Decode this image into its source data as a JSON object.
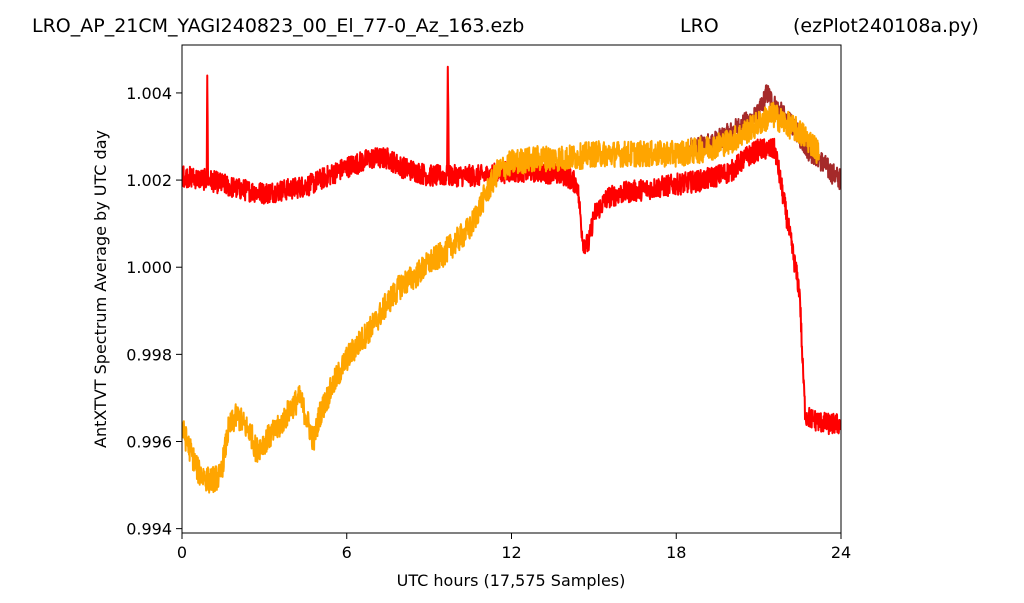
{
  "title_left": "LRO_AP_21CM_YAGI240823_00_El_77-0_Az_163.ezb",
  "title_center": "LRO",
  "title_right": "(ezPlot240108a.py)",
  "chart_data": {
    "type": "line",
    "xlabel": "UTC hours  (17,575 Samples)",
    "ylabel": "AntXTVT Spectrum Average by UTC day",
    "xlim": [
      0,
      24
    ],
    "ylim": [
      0.9939,
      1.0051
    ],
    "xticks": [
      0,
      6,
      12,
      18,
      24
    ],
    "xtick_labels": [
      "0",
      "6",
      "12",
      "18",
      "24"
    ],
    "yticks": [
      0.994,
      0.996,
      0.998,
      1.0,
      1.002,
      1.004
    ],
    "ytick_labels": [
      "0.994",
      "0.996",
      "0.998",
      "1.000",
      "1.002",
      "1.004"
    ],
    "grid": false,
    "legend": false,
    "series": [
      {
        "color": "#a52a2a",
        "x": [
          18.5,
          19.0,
          19.5,
          20.0,
          20.5,
          21.0,
          21.3,
          21.6,
          22.0,
          22.4,
          22.8,
          23.2,
          23.6,
          24.0
        ],
        "y": [
          1.0027,
          1.0028,
          1.0029,
          1.0031,
          1.0033,
          1.0035,
          1.004,
          1.0037,
          1.0034,
          1.0031,
          1.0027,
          1.0025,
          1.0022,
          1.002
        ],
        "noise": 0.0005
      },
      {
        "color": "#ff0000",
        "x": [
          0.0,
          0.9,
          0.92,
          0.95,
          1.0,
          2.0,
          3.0,
          4.0,
          4.7,
          5.0,
          6.0,
          6.9,
          7.5,
          8.0,
          9.0,
          9.65,
          9.68,
          9.72,
          9.8,
          10.5,
          11.0,
          12.0,
          13.0,
          14.0,
          14.4,
          14.6,
          14.8,
          15.0,
          15.5,
          16.0,
          17.0,
          18.0,
          19.0,
          20.0,
          20.5,
          21.0,
          21.4,
          21.6,
          22.5,
          22.6,
          22.7,
          23.0,
          23.5,
          24.0
        ],
        "y": [
          1.0021,
          1.002,
          1.0044,
          1.002,
          1.002,
          1.0018,
          1.0017,
          1.0018,
          1.0019,
          1.002,
          1.0023,
          1.0025,
          1.0025,
          1.0023,
          1.0021,
          1.0021,
          1.0046,
          1.0021,
          1.0021,
          1.0021,
          1.0021,
          1.0022,
          1.0022,
          1.0021,
          1.0019,
          1.0006,
          1.0005,
          1.0012,
          1.0016,
          1.0017,
          1.0018,
          1.0019,
          1.002,
          1.0022,
          1.0025,
          1.0027,
          1.0027,
          1.0027,
          0.9994,
          0.9978,
          0.9966,
          0.9965,
          0.9964,
          0.9964
        ],
        "noise": 0.0005
      },
      {
        "color": "#ffa500",
        "x": [
          0.0,
          0.3,
          0.6,
          1.0,
          1.4,
          1.7,
          2.0,
          2.5,
          2.7,
          3.0,
          3.5,
          4.0,
          4.3,
          4.5,
          4.8,
          5.0,
          5.5,
          6.0,
          6.5,
          7.0,
          7.5,
          8.0,
          8.5,
          9.0,
          9.5,
          10.0,
          10.5,
          11.0,
          11.5,
          12.0,
          13.0,
          14.0,
          15.0,
          16.0,
          17.0,
          18.0,
          19.0,
          20.0,
          20.5,
          21.0,
          21.5,
          22.0,
          22.5,
          23.0,
          23.2
        ],
        "y": [
          0.9963,
          0.9958,
          0.9953,
          0.9951,
          0.9952,
          0.9963,
          0.9966,
          0.9962,
          0.9958,
          0.996,
          0.9963,
          0.9968,
          0.997,
          0.9966,
          0.996,
          0.9966,
          0.9973,
          0.9979,
          0.9983,
          0.9987,
          0.9992,
          0.9996,
          0.9998,
          1.0001,
          1.0003,
          1.0006,
          1.0009,
          1.0016,
          1.0022,
          1.0024,
          1.0025,
          1.0025,
          1.0026,
          1.0026,
          1.0026,
          1.0026,
          1.0027,
          1.0029,
          1.0031,
          1.0033,
          1.0035,
          1.0033,
          1.0031,
          1.0028,
          1.0026
        ],
        "noise": 0.0006
      }
    ]
  }
}
